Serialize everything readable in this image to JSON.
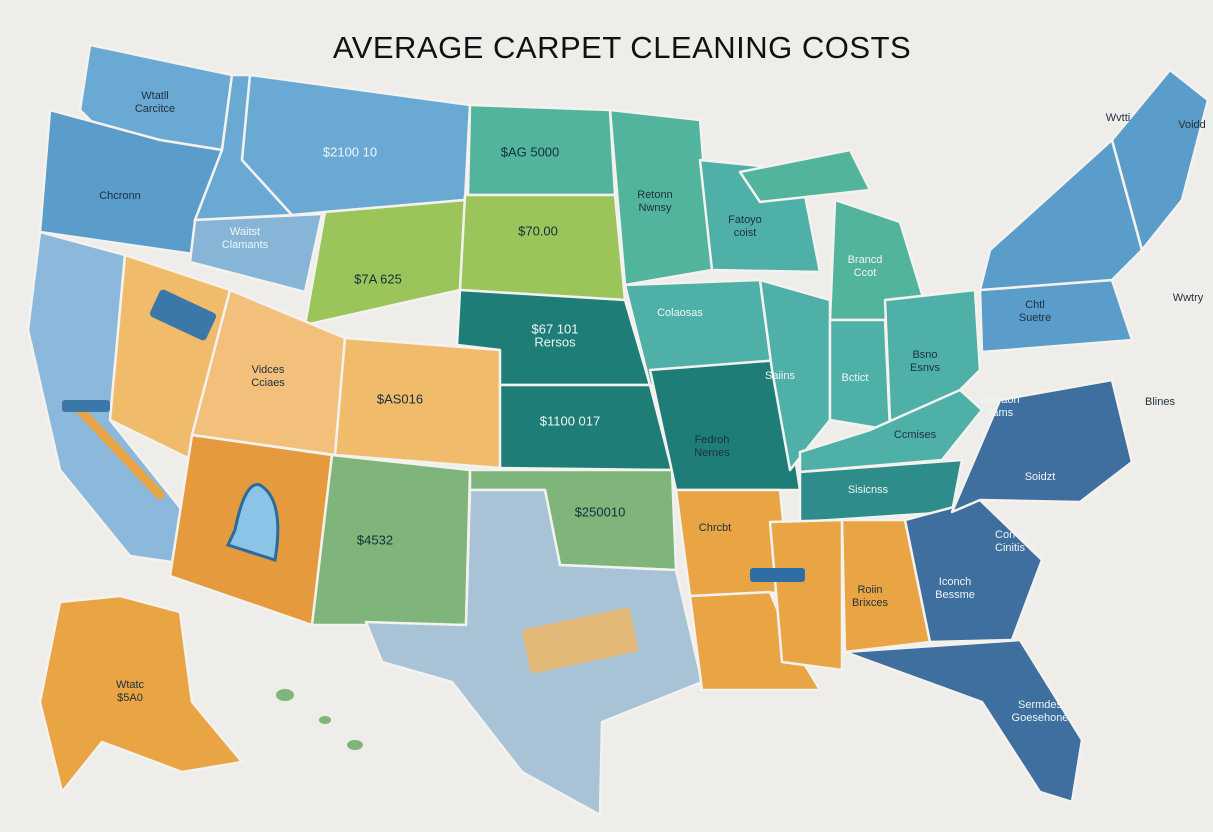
{
  "title": "AVERAGE CARPET CLEANING COSTS",
  "labels": [
    {
      "lines": [
        "Wtatll",
        "Carcitce"
      ]
    },
    {
      "lines": [
        "Chcronn"
      ]
    },
    {
      "lines": [
        "Waitst",
        "Clamants"
      ]
    },
    {
      "lines": [
        "$2100 10"
      ]
    },
    {
      "lines": [
        "$AG 5000"
      ]
    },
    {
      "lines": [
        "$70.00"
      ]
    },
    {
      "lines": [
        "$7A 625"
      ]
    },
    {
      "lines": [
        "Vidces",
        "Cciaes"
      ]
    },
    {
      "lines": [
        "$AS016"
      ]
    },
    {
      "lines": [
        "$67 101",
        "Rersos"
      ]
    },
    {
      "lines": [
        "$1100 017"
      ]
    },
    {
      "lines": [
        "Retonn",
        "Nwnsy"
      ]
    },
    {
      "lines": [
        "Fatoyo",
        "coist"
      ]
    },
    {
      "lines": [
        "Brancd",
        "Ccot"
      ]
    },
    {
      "lines": [
        "Colaosas"
      ]
    },
    {
      "lines": [
        "Saiins"
      ]
    },
    {
      "lines": [
        "Bctict"
      ]
    },
    {
      "lines": [
        "Bsno",
        "Esnvs"
      ]
    },
    {
      "lines": [
        "Fedroh",
        "Nernes"
      ]
    },
    {
      "lines": [
        "$250010"
      ]
    },
    {
      "lines": [
        "$4532"
      ]
    },
    {
      "lines": [
        "Chrcbt"
      ]
    },
    {
      "lines": [
        "Roiin",
        "Brixces"
      ]
    },
    {
      "lines": [
        "Wtatc",
        "$5A0"
      ]
    },
    {
      "lines": [
        "Chtl",
        "Suetre"
      ]
    },
    {
      "lines": [
        "Ilhe aon",
        "Jams"
      ]
    },
    {
      "lines": [
        "Soidzt"
      ]
    },
    {
      "lines": [
        "Corrts",
        "Cinitis"
      ]
    },
    {
      "lines": [
        "Iconch",
        "Bessme"
      ]
    },
    {
      "lines": [
        "Sermdes",
        "Goesehone"
      ]
    },
    {
      "lines": [
        "Ccmises"
      ]
    },
    {
      "lines": [
        "Sisicnss"
      ]
    },
    {
      "lines": [
        "Wvtti"
      ]
    },
    {
      "lines": [
        "Voidd"
      ]
    },
    {
      "lines": [
        "Wwtry"
      ]
    },
    {
      "lines": [
        "Blines"
      ]
    }
  ]
}
